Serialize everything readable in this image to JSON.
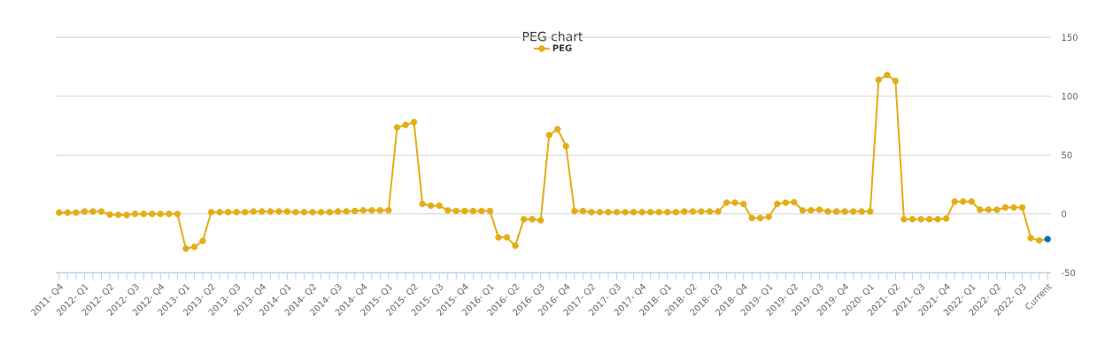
{
  "chart_data": {
    "type": "line",
    "title": "PEG chart",
    "categories": [
      "2011- Q4",
      null,
      null,
      "2012- Q1",
      null,
      null,
      "2012- Q2",
      null,
      null,
      "2012- Q3",
      null,
      null,
      "2012- Q4",
      null,
      null,
      "2013- Q1",
      null,
      null,
      "2013- Q2",
      null,
      null,
      "2013- Q3",
      null,
      null,
      "2013- Q4",
      null,
      null,
      "2014- Q1",
      null,
      null,
      "2014- Q2",
      null,
      null,
      "2014- Q3",
      null,
      null,
      "2014- Q4",
      null,
      null,
      "2015- Q1",
      null,
      null,
      "2015- Q2",
      null,
      null,
      "2015- Q3",
      null,
      null,
      "2015- Q4",
      null,
      null,
      "2016- Q1",
      null,
      null,
      "2016- Q2",
      null,
      null,
      "2016- Q3",
      null,
      null,
      "2016- Q4",
      null,
      null,
      "2017- Q2",
      null,
      null,
      "2017- Q3",
      null,
      null,
      "2017- Q4",
      null,
      null,
      "2018- Q1",
      null,
      null,
      "2018- Q2",
      null,
      null,
      "2018- Q3",
      null,
      null,
      "2018- Q4",
      null,
      null,
      "2019- Q1",
      null,
      null,
      "2019- Q2",
      null,
      null,
      "2019- Q3",
      null,
      null,
      "2019- Q4",
      null,
      null,
      "2020- Q1",
      null,
      null,
      "2021- Q2",
      null,
      null,
      "2021- Q3",
      null,
      null,
      "2021- Q4",
      null,
      null,
      "2022- Q1",
      null,
      null,
      "2022- Q2",
      null,
      null,
      "2022- Q3",
      null,
      null,
      "Current"
    ],
    "series": [
      {
        "name": "PEG",
        "color": "#e4ad16",
        "values": [
          1.2,
          1.2,
          1.2,
          2,
          2,
          2,
          -0.5,
          -0.8,
          -1,
          0,
          0,
          0,
          0,
          0,
          0,
          -29.5,
          -28,
          -23,
          1.5,
          1.5,
          1.5,
          1.5,
          1.5,
          2,
          2,
          2,
          2,
          2,
          1.5,
          1.5,
          1.5,
          1.5,
          1.5,
          2,
          2,
          2.5,
          3,
          3,
          3,
          3,
          73.5,
          75.5,
          78,
          8.5,
          7,
          7,
          3,
          2.5,
          2.5,
          2.5,
          2.5,
          2.5,
          -20,
          -20,
          -27,
          -4.5,
          -4.5,
          -5.5,
          67,
          72,
          57.5,
          2.5,
          2.5,
          1.5,
          1.5,
          1.5,
          1.5,
          1.5,
          1.5,
          1.5,
          1.5,
          1.5,
          1.5,
          1.5,
          2,
          2,
          2,
          2,
          2,
          9.5,
          9.5,
          8.5,
          -3.5,
          -3.5,
          -2.5,
          8.5,
          9.5,
          10,
          3,
          3,
          3.5,
          2,
          2,
          2,
          2,
          2,
          2,
          114,
          118,
          113,
          -4.5,
          -4.5,
          -4.5,
          -4.5,
          -4.5,
          -4,
          10.5,
          10.5,
          10.5,
          3.5,
          3.5,
          3.5,
          5.5,
          5.5,
          5.5,
          -20.5,
          -22.5,
          -21.5
        ],
        "colors": [
          "#e4ad16",
          "#e4ad16",
          "#e4ad16",
          "#e4ad16",
          "#e4ad16",
          "#e4ad16",
          "#e4ad16",
          "#e4ad16",
          "#e4ad16",
          "#e4ad16",
          "#e4ad16",
          "#e4ad16",
          "#e4ad16",
          "#e4ad16",
          "#e4ad16",
          "#e4ad16",
          "#e4ad16",
          "#e4ad16",
          "#e4ad16",
          "#e4ad16",
          "#e4ad16",
          "#e4ad16",
          "#e4ad16",
          "#e4ad16",
          "#e4ad16",
          "#e4ad16",
          "#e4ad16",
          "#e4ad16",
          "#e4ad16",
          "#e4ad16",
          "#e4ad16",
          "#e4ad16",
          "#e4ad16",
          "#e4ad16",
          "#e4ad16",
          "#e4ad16",
          "#e4ad16",
          "#e4ad16",
          "#e4ad16",
          "#e4ad16",
          "#e4ad16",
          "#e4ad16",
          "#e4ad16",
          "#e4ad16",
          "#e4ad16",
          "#e4ad16",
          "#e4ad16",
          "#e4ad16",
          "#e4ad16",
          "#e4ad16",
          "#e4ad16",
          "#e4ad16",
          "#e4ad16",
          "#e4ad16",
          "#e4ad16",
          "#e4ad16",
          "#e4ad16",
          "#e4ad16",
          "#e4ad16",
          "#e4ad16",
          "#e4ad16",
          "#e4ad16",
          "#e4ad16",
          "#e4ad16",
          "#e4ad16",
          "#e4ad16",
          "#e4ad16",
          "#e4ad16",
          "#e4ad16",
          "#e4ad16",
          "#e4ad16",
          "#e4ad16",
          "#e4ad16",
          "#e4ad16",
          "#e4ad16",
          "#e4ad16",
          "#e4ad16",
          "#e4ad16",
          "#e4ad16",
          "#e4ad16",
          "#e4ad16",
          "#e4ad16",
          "#e4ad16",
          "#e4ad16",
          "#e4ad16",
          "#e4ad16",
          "#e4ad16",
          "#e4ad16",
          "#e4ad16",
          "#e4ad16",
          "#e4ad16",
          "#e4ad16",
          "#e4ad16",
          "#e4ad16",
          "#e4ad16",
          "#e4ad16",
          "#e4ad16",
          "#e4ad16",
          "#e4ad16",
          "#e4ad16",
          "#e4ad16",
          "#e4ad16",
          "#e4ad16",
          "#e4ad16",
          "#e4ad16",
          "#e4ad16",
          "#e4ad16",
          "#e4ad16",
          "#e4ad16",
          "#e4ad16",
          "#e4ad16",
          "#e4ad16",
          "#e4ad16",
          "#e4ad16",
          "#e4ad16",
          "#e4ad16",
          "#e4ad16",
          "#0e6eb0"
        ]
      }
    ],
    "ylim": [
      -50,
      150
    ],
    "yticks": [
      -50,
      0,
      50,
      100,
      150
    ],
    "grid": "y",
    "legend": "top",
    "marker": "circle",
    "line_style": "solid"
  }
}
